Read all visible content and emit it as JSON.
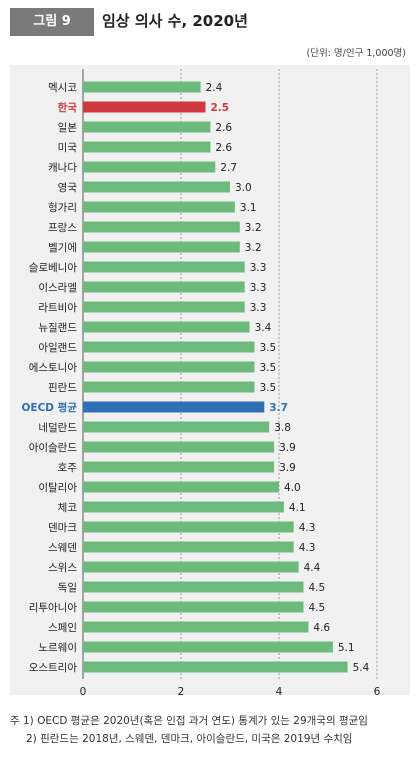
{
  "figure": {
    "label": "그림 9",
    "title": "임상 의사 수, 2020년",
    "unit": "(단위: 명/인구 1,000명)"
  },
  "notes": [
    "주 1) OECD 평균은 2020년(혹은 인접 과거 연도) 통계가 있는 29개국의 평균임",
    "2) 핀란드는 2018년, 스웨덴, 덴마크, 아이슬란드, 미국은 2019년 수치임"
  ],
  "chart_data": {
    "type": "bar",
    "orientation": "horizontal",
    "title": "임상 의사 수, 2020년",
    "categories": [
      "멕시코",
      "한국",
      "일본",
      "미국",
      "캐나다",
      "영국",
      "헝가리",
      "프랑스",
      "벨기에",
      "슬로베니아",
      "이스라엘",
      "라트비아",
      "뉴질랜드",
      "아일랜드",
      "에스토니아",
      "핀란드",
      "OECD 평균",
      "네덜란드",
      "아이슬란드",
      "호주",
      "이탈리아",
      "체코",
      "덴마크",
      "스웨덴",
      "스위스",
      "독일",
      "리투아니아",
      "스페인",
      "노르웨이",
      "오스트리아"
    ],
    "values": [
      2.4,
      2.5,
      2.6,
      2.6,
      2.7,
      3.0,
      3.1,
      3.2,
      3.2,
      3.3,
      3.3,
      3.3,
      3.4,
      3.5,
      3.5,
      3.5,
      3.7,
      3.8,
      3.9,
      3.9,
      4.0,
      4.1,
      4.3,
      4.3,
      4.4,
      4.5,
      4.5,
      4.6,
      5.1,
      5.4
    ],
    "value_labels": [
      "2.4",
      "2.5",
      "2.6",
      "2.6",
      "2.7",
      "3.0",
      "3.1",
      "3.2",
      "3.2",
      "3.3",
      "3.3",
      "3.3",
      "3.4",
      "3.5",
      "3.5",
      "3.5",
      "3.7",
      "3.8",
      "3.9",
      "3.9",
      "4.0",
      "4.1",
      "4.3",
      "4.3",
      "4.4",
      "4.5",
      "4.5",
      "4.6",
      "5.1",
      "5.4"
    ],
    "highlight": {
      "한국": "#d0393e",
      "OECD 평균": "#2f6fb5"
    },
    "bar_color": "#6dbb7c",
    "xlim": [
      0,
      6
    ],
    "xticks": [
      "0",
      "2",
      "4",
      "6"
    ],
    "xtick_values": [
      0,
      2,
      4,
      6
    ],
    "grid": "dotted vertical at 2, 4, 6"
  }
}
